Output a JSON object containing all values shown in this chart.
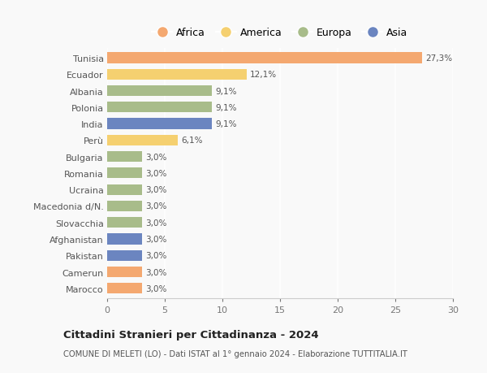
{
  "countries": [
    "Tunisia",
    "Ecuador",
    "Albania",
    "Polonia",
    "India",
    "Perù",
    "Bulgaria",
    "Romania",
    "Ucraina",
    "Macedonia d/N.",
    "Slovacchia",
    "Afghanistan",
    "Pakistan",
    "Camerun",
    "Marocco"
  ],
  "values": [
    27.3,
    12.1,
    9.1,
    9.1,
    9.1,
    6.1,
    3.0,
    3.0,
    3.0,
    3.0,
    3.0,
    3.0,
    3.0,
    3.0,
    3.0
  ],
  "labels": [
    "27,3%",
    "12,1%",
    "9,1%",
    "9,1%",
    "9,1%",
    "6,1%",
    "3,0%",
    "3,0%",
    "3,0%",
    "3,0%",
    "3,0%",
    "3,0%",
    "3,0%",
    "3,0%",
    "3,0%"
  ],
  "continents": [
    "Africa",
    "America",
    "Europa",
    "Europa",
    "Asia",
    "America",
    "Europa",
    "Europa",
    "Europa",
    "Europa",
    "Europa",
    "Asia",
    "Asia",
    "Africa",
    "Africa"
  ],
  "colors": {
    "Africa": "#F4A870",
    "America": "#F5D070",
    "Europa": "#A8BC8A",
    "Asia": "#6B85C0"
  },
  "legend_order": [
    "Africa",
    "America",
    "Europa",
    "Asia"
  ],
  "title": "Cittadini Stranieri per Cittadinanza - 2024",
  "subtitle": "COMUNE DI MELETI (LO) - Dati ISTAT al 1° gennaio 2024 - Elaborazione TUTTITALIA.IT",
  "xlim": [
    0,
    30
  ],
  "xticks": [
    0,
    5,
    10,
    15,
    20,
    25,
    30
  ],
  "background_color": "#f9f9f9",
  "grid_color": "#ffffff",
  "bar_height": 0.65
}
